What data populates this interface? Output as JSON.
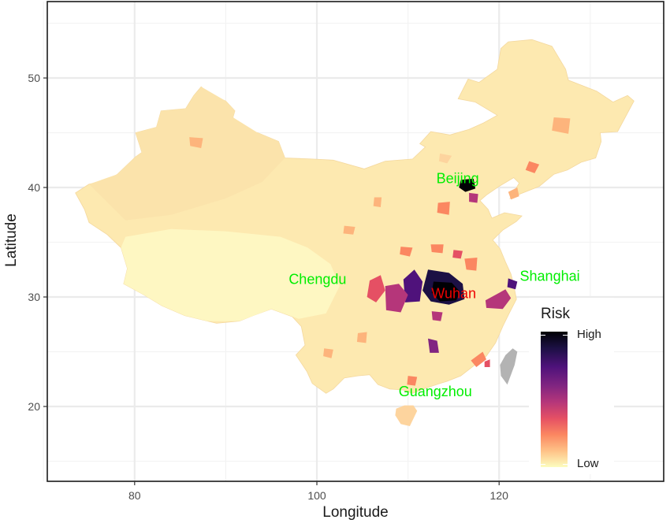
{
  "axes": {
    "xlabel": "Longitude",
    "ylabel": "Latitude",
    "xticks": [
      "80",
      "100",
      "120"
    ],
    "yticks": [
      "20",
      "30",
      "40",
      "50"
    ],
    "xlim": [
      70,
      137
    ],
    "ylim": [
      13,
      56
    ]
  },
  "legend": {
    "title": "Risk",
    "high_label": "High",
    "low_label": "Low",
    "colors": [
      "#000004",
      "#1c1044",
      "#4f127b",
      "#812581",
      "#b5367a",
      "#e55064",
      "#fb8761",
      "#fec287",
      "#fcfdbf"
    ]
  },
  "cities": [
    {
      "name": "Beijing",
      "lon": 116.4,
      "lat": 39.9,
      "color": "#00ee00"
    },
    {
      "name": "Shanghai",
      "lon": 121.5,
      "lat": 31.2,
      "color": "#00ee00"
    },
    {
      "name": "Chengdu",
      "lon": 104.1,
      "lat": 30.7,
      "color": "#00ee00"
    },
    {
      "name": "Wuhan",
      "lon": 114.3,
      "lat": 30.6,
      "color": "#ee0000"
    },
    {
      "name": "Guangzhou",
      "lon": 113.3,
      "lat": 23.1,
      "color": "#00ee00"
    }
  ],
  "map_style": {
    "base_fill": "#fde9b0",
    "west_fill": "#fbe3ab",
    "tibet_fill": "#fef7c2",
    "taiwan_fill": "#b3b3b3",
    "panel_background": "#ffffff",
    "grid_color": "#ebebeb"
  }
}
